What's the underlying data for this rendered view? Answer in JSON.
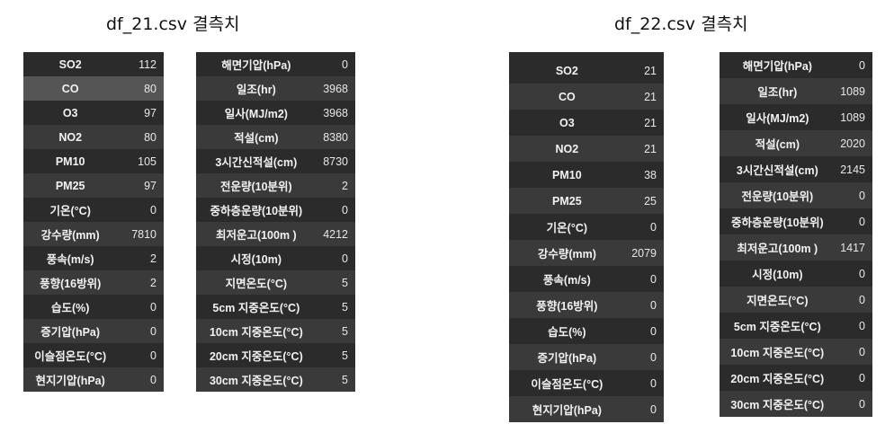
{
  "titles": {
    "left": "df_21.csv 결측치",
    "right": "df_22.csv 결측치"
  },
  "tables": {
    "t21a": [
      {
        "label": "SO2",
        "value": "112"
      },
      {
        "label": "CO",
        "value": "80"
      },
      {
        "label": "O3",
        "value": "97"
      },
      {
        "label": "NO2",
        "value": "80"
      },
      {
        "label": "PM10",
        "value": "105"
      },
      {
        "label": "PM25",
        "value": "97"
      },
      {
        "label": "기온(°C)",
        "value": "0"
      },
      {
        "label": "강수량(mm)",
        "value": "7810"
      },
      {
        "label": "풍속(m/s)",
        "value": "2"
      },
      {
        "label": "풍향(16방위)",
        "value": "2"
      },
      {
        "label": "습도(%)",
        "value": "0"
      },
      {
        "label": "증기압(hPa)",
        "value": "0"
      },
      {
        "label": "이슬점온도(°C)",
        "value": "0"
      },
      {
        "label": "현지기압(hPa)",
        "value": "0"
      }
    ],
    "t21b": [
      {
        "label": "해면기압(hPa)",
        "value": "0"
      },
      {
        "label": "일조(hr)",
        "value": "3968"
      },
      {
        "label": "일사(MJ/m2)",
        "value": "3968"
      },
      {
        "label": "적설(cm)",
        "value": "8380"
      },
      {
        "label": "3시간신적설(cm)",
        "value": "8730"
      },
      {
        "label": "전운량(10분위)",
        "value": "2"
      },
      {
        "label": "중하층운량(10분위)",
        "value": "0"
      },
      {
        "label": "최저운고(100m )",
        "value": "4212"
      },
      {
        "label": "시정(10m)",
        "value": "0"
      },
      {
        "label": "지면온도(°C)",
        "value": "5"
      },
      {
        "label": "5cm 지중온도(°C)",
        "value": "5"
      },
      {
        "label": "10cm 지중온도(°C)",
        "value": "5"
      },
      {
        "label": "20cm 지중온도(°C)",
        "value": "5"
      },
      {
        "label": "30cm 지중온도(°C)",
        "value": "5"
      }
    ],
    "t22a": [
      {
        "label": "SO2",
        "value": "21"
      },
      {
        "label": "CO",
        "value": "21"
      },
      {
        "label": "O3",
        "value": "21"
      },
      {
        "label": "NO2",
        "value": "21"
      },
      {
        "label": "PM10",
        "value": "38"
      },
      {
        "label": "PM25",
        "value": "25"
      },
      {
        "label": "기온(°C)",
        "value": "0"
      },
      {
        "label": "강수량(mm)",
        "value": "2079"
      },
      {
        "label": "풍속(m/s)",
        "value": "0"
      },
      {
        "label": "풍향(16방위)",
        "value": "0"
      },
      {
        "label": "습도(%)",
        "value": "0"
      },
      {
        "label": "증기압(hPa)",
        "value": "0"
      },
      {
        "label": "이슬점온도(°C)",
        "value": "0"
      },
      {
        "label": "현지기압(hPa)",
        "value": "0"
      }
    ],
    "t22b": [
      {
        "label": "해면기압(hPa)",
        "value": "0"
      },
      {
        "label": "일조(hr)",
        "value": "1089"
      },
      {
        "label": "일사(MJ/m2)",
        "value": "1089"
      },
      {
        "label": "적설(cm)",
        "value": "2020"
      },
      {
        "label": "3시간신적설(cm)",
        "value": "2145"
      },
      {
        "label": "전운량(10분위)",
        "value": "0"
      },
      {
        "label": "중하층운량(10분위)",
        "value": "0"
      },
      {
        "label": "최저운고(100m )",
        "value": "1417"
      },
      {
        "label": "시정(10m)",
        "value": "0"
      },
      {
        "label": "지면온도(°C)",
        "value": "0"
      },
      {
        "label": "5cm 지중온도(°C)",
        "value": "0"
      },
      {
        "label": "10cm 지중온도(°C)",
        "value": "0"
      },
      {
        "label": "20cm 지중온도(°C)",
        "value": "0"
      },
      {
        "label": "30cm 지중온도(°C)",
        "value": "0"
      }
    ]
  },
  "colors": {
    "row_dark": "#2b2b2b",
    "row_light": "#3a3a3a",
    "highlight": "#555555",
    "text": "#f2f2f2"
  }
}
